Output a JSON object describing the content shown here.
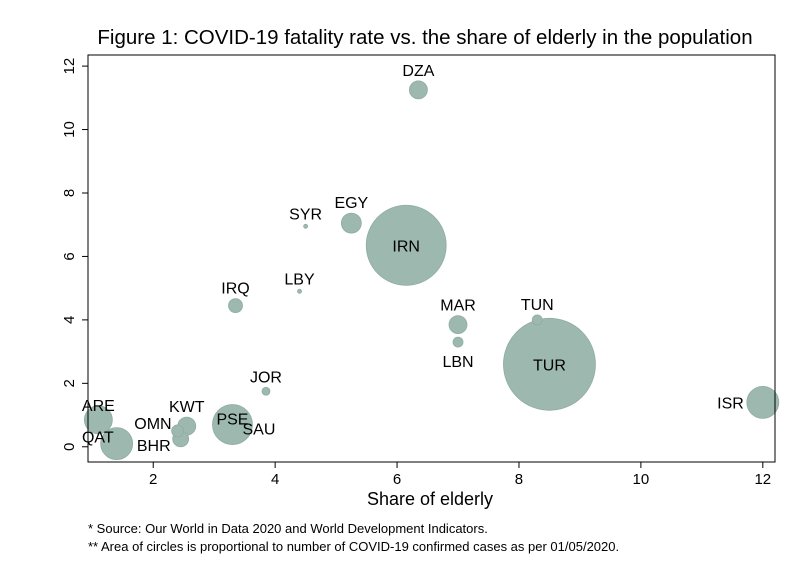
{
  "chart_data": {
    "type": "scatter",
    "subtype": "bubble",
    "title": "Figure 1: COVID-19 fatality rate vs. the share of elderly in the population",
    "xlabel": "Share of elderly",
    "ylabel": "",
    "xlim": [
      0.93,
      12.2
    ],
    "ylim": [
      -0.48,
      12.35
    ],
    "xticks": [
      2,
      4,
      6,
      8,
      10,
      12
    ],
    "yticks": [
      0,
      2,
      4,
      6,
      8,
      10,
      12
    ],
    "grid": false,
    "legend": "none",
    "marker_color": "#9db8ae",
    "marker_edge_color": "#8fada2",
    "size_note": "relative bubble area (proportional to confirmed cases)",
    "points": [
      {
        "label": "DZA",
        "x": 6.35,
        "y": 11.25,
        "size": 81,
        "label_pos": "above"
      },
      {
        "label": "SYR",
        "x": 4.5,
        "y": 6.95,
        "size": 4,
        "label_pos": "above"
      },
      {
        "label": "EGY",
        "x": 5.25,
        "y": 7.05,
        "size": 100,
        "label_pos": "above"
      },
      {
        "label": "IRN",
        "x": 6.15,
        "y": 6.35,
        "size": 1600,
        "label_pos": "center"
      },
      {
        "label": "LBY",
        "x": 4.4,
        "y": 4.9,
        "size": 4,
        "label_pos": "above"
      },
      {
        "label": "IRQ",
        "x": 3.35,
        "y": 4.45,
        "size": 49,
        "label_pos": "above"
      },
      {
        "label": "MAR",
        "x": 7.0,
        "y": 3.85,
        "size": 81,
        "label_pos": "above"
      },
      {
        "label": "TUN",
        "x": 8.3,
        "y": 4.0,
        "size": 25,
        "label_pos": "above"
      },
      {
        "label": "LBN",
        "x": 7.0,
        "y": 3.3,
        "size": 25,
        "label_pos": "below"
      },
      {
        "label": "TUR",
        "x": 8.5,
        "y": 2.6,
        "size": 2116,
        "label_pos": "center"
      },
      {
        "label": "JOR",
        "x": 3.85,
        "y": 1.75,
        "size": 16,
        "label_pos": "above"
      },
      {
        "label": "ISR",
        "x": 12.0,
        "y": 1.4,
        "size": 256,
        "label_pos": "left"
      },
      {
        "label": "ARE",
        "x": 1.1,
        "y": 0.85,
        "size": 196,
        "label_pos": "above"
      },
      {
        "label": "QAT",
        "x": 1.4,
        "y": 0.1,
        "size": 256,
        "label_pos": "left"
      },
      {
        "label": "OMN",
        "x": 2.4,
        "y": 0.5,
        "size": 36,
        "label_pos": "left"
      },
      {
        "label": "KWT",
        "x": 2.55,
        "y": 0.65,
        "size": 81,
        "label_pos": "above"
      },
      {
        "label": "BHR",
        "x": 2.45,
        "y": 0.25,
        "size": 64,
        "label_pos": "left-below"
      },
      {
        "label": "PSE",
        "x": 3.3,
        "y": 0.7,
        "size": 400,
        "label_pos": "above"
      },
      {
        "label": "SAU",
        "x": 3.3,
        "y": 0.7,
        "size": 400,
        "label_pos": "right-below"
      }
    ]
  },
  "footnotes": {
    "source": "* Source:  Our World in Data 2020 and World Development Indicators.",
    "area_note": "** Area of circles is proportional to number of COVID-19 confirmed cases as per 01/05/2020."
  }
}
